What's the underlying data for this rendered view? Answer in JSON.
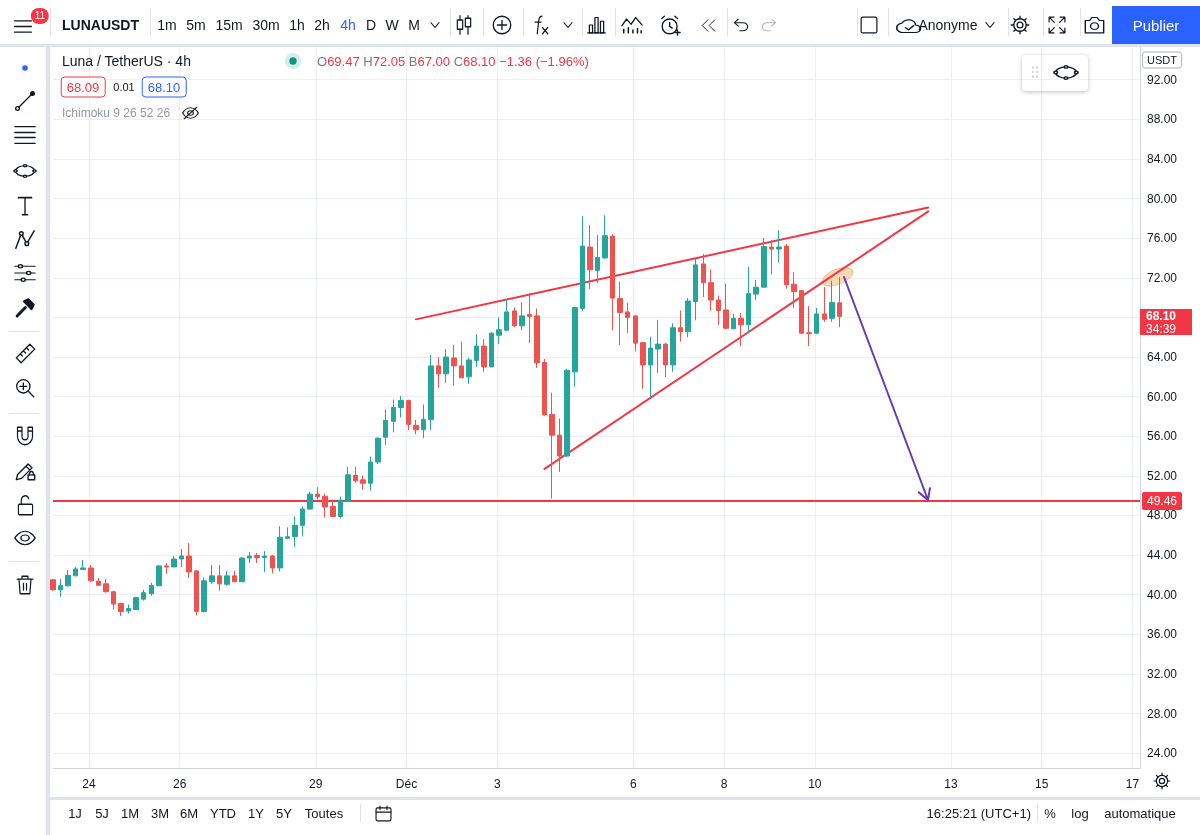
{
  "chart_data": {
    "type": "candlestick",
    "title": "Luna / TetherUS · 4h",
    "subtitle": "O69.47 H72.05 B67.00 C68.10 −1.36 (−1.96%)",
    "x": [
      "--11-23T05:00",
      "--11-23T09:00",
      "--11-23T13:00",
      "--11-23T17:00",
      "--11-23T21:00",
      "--11-24T01:00",
      "--11-24T05:00",
      "--11-24T09:00",
      "--11-24T13:00",
      "--11-24T17:00",
      "--11-24T21:00",
      "--11-25T01:00",
      "--11-25T05:00",
      "--11-25T09:00",
      "--11-25T13:00",
      "--11-25T17:00",
      "--11-25T21:00",
      "--11-26T01:00",
      "--11-26T05:00",
      "--11-26T09:00",
      "--11-26T13:00",
      "--11-26T17:00",
      "--11-26T21:00",
      "--11-27T01:00",
      "--11-27T05:00",
      "--11-27T09:00",
      "--11-27T13:00",
      "--11-27T17:00",
      "--11-27T21:00",
      "--11-28T01:00",
      "--11-28T05:00",
      "--11-28T09:00",
      "--11-28T13:00",
      "--11-28T17:00",
      "--11-28T21:00",
      "--11-29T01:00",
      "--11-29T05:00",
      "--11-29T09:00",
      "--11-29T13:00",
      "--11-29T17:00",
      "--11-29T21:00",
      "--11-30T01:00",
      "--11-30T05:00",
      "--11-30T09:00",
      "--11-30T13:00",
      "--11-30T17:00",
      "--11-30T21:00",
      "--12-01T01:00",
      "--12-01T05:00",
      "--12-01T09:00",
      "--12-01T13:00",
      "--12-01T17:00",
      "--12-01T21:00",
      "--12-02T01:00",
      "--12-02T05:00",
      "--12-02T09:00",
      "--12-02T13:00",
      "--12-02T17:00",
      "--12-02T21:00",
      "--12-03T01:00",
      "--12-03T05:00",
      "--12-03T09:00",
      "--12-03T13:00",
      "--12-03T17:00",
      "--12-03T21:00",
      "--12-04T01:00",
      "--12-04T05:00",
      "--12-04T09:00",
      "--12-04T13:00",
      "--12-04T17:00",
      "--12-04T21:00",
      "--12-05T01:00",
      "--12-05T05:00",
      "--12-05T09:00",
      "--12-05T13:00",
      "--12-05T17:00",
      "--12-05T21:00",
      "--12-06T01:00",
      "--12-06T05:00",
      "--12-06T09:00",
      "--12-06T13:00",
      "--12-06T17:00",
      "--12-06T21:00",
      "--12-07T01:00",
      "--12-07T05:00",
      "--12-07T09:00",
      "--12-07T13:00",
      "--12-07T17:00",
      "--12-07T21:00",
      "--12-08T01:00",
      "--12-08T05:00",
      "--12-08T09:00",
      "--12-08T13:00",
      "--12-08T17:00",
      "--12-08T21:00",
      "--12-09T01:00",
      "--12-09T05:00",
      "--12-09T09:00",
      "--12-09T13:00",
      "--12-09T17:00",
      "--12-09T21:00",
      "--12-10T01:00",
      "--12-10T05:00",
      "--12-10T09:00",
      "--12-10T13:00"
    ],
    "ohlc": [
      [
        41.5,
        41.6,
        40.4,
        40.5
      ],
      [
        40.5,
        41.6,
        39.8,
        40.9
      ],
      [
        40.9,
        42.5,
        40.8,
        41.95
      ],
      [
        41.9,
        42.8,
        41.9,
        42.6
      ],
      [
        42.55,
        43.5,
        42.5,
        42.7
      ],
      [
        42.7,
        43.0,
        41.3,
        41.4
      ],
      [
        41.35,
        41.7,
        40.9,
        40.95
      ],
      [
        41.1,
        41.6,
        40.2,
        40.3
      ],
      [
        40.3,
        40.4,
        38.5,
        39.05
      ],
      [
        39.1,
        39.2,
        37.85,
        38.3
      ],
      [
        38.35,
        39.0,
        38.1,
        38.6
      ],
      [
        38.5,
        39.8,
        38.5,
        39.7
      ],
      [
        39.55,
        40.5,
        39.4,
        40.2
      ],
      [
        40.1,
        41.2,
        39.9,
        40.95
      ],
      [
        40.9,
        43.0,
        40.9,
        42.9
      ],
      [
        42.9,
        43.2,
        42.1,
        42.8
      ],
      [
        42.8,
        43.9,
        42.8,
        43.6
      ],
      [
        43.6,
        44.6,
        42.8,
        43.9
      ],
      [
        43.9,
        45.2,
        41.7,
        42.3
      ],
      [
        42.4,
        42.5,
        37.9,
        38.3
      ],
      [
        38.3,
        41.75,
        38.2,
        41.4
      ],
      [
        41.3,
        43.0,
        41.1,
        41.9
      ],
      [
        41.9,
        43.0,
        40.4,
        41.1
      ],
      [
        41.05,
        42.4,
        40.9,
        41.9
      ],
      [
        41.9,
        42.4,
        41.3,
        41.3
      ],
      [
        41.3,
        43.8,
        41.3,
        43.7
      ],
      [
        43.7,
        44.3,
        43.2,
        43.9
      ],
      [
        43.95,
        44.2,
        43.2,
        43.75
      ],
      [
        43.75,
        44.4,
        42.3,
        43.9
      ],
      [
        43.9,
        44.0,
        42.15,
        42.7
      ],
      [
        42.7,
        46.9,
        42.35,
        45.8
      ],
      [
        45.7,
        46.8,
        45.6,
        45.85
      ],
      [
        45.85,
        47.9,
        44.8,
        47.0
      ],
      [
        47.0,
        48.9,
        45.9,
        48.65
      ],
      [
        48.65,
        50.4,
        48.6,
        50.15
      ],
      [
        50.15,
        50.85,
        49.6,
        49.9
      ],
      [
        49.95,
        50.2,
        47.8,
        48.85
      ],
      [
        48.9,
        49.6,
        47.85,
        47.9
      ],
      [
        47.9,
        49.9,
        47.7,
        49.55
      ],
      [
        49.45,
        52.9,
        49.4,
        52.1
      ],
      [
        52.05,
        52.9,
        51.3,
        51.5
      ],
      [
        51.6,
        52.05,
        50.6,
        51.25
      ],
      [
        51.25,
        53.95,
        50.5,
        53.4
      ],
      [
        53.4,
        55.9,
        53.2,
        55.8
      ],
      [
        55.9,
        58.7,
        55.1,
        57.6
      ],
      [
        57.5,
        59.7,
        56.4,
        58.9
      ],
      [
        58.9,
        60.05,
        57.9,
        59.6
      ],
      [
        59.6,
        59.7,
        56.6,
        57.2
      ],
      [
        57.1,
        57.65,
        56.2,
        56.65
      ],
      [
        56.65,
        59.2,
        55.8,
        57.7
      ],
      [
        57.7,
        64.2,
        56.6,
        63.1
      ],
      [
        63.1,
        64.0,
        60.9,
        62.3
      ],
      [
        62.3,
        64.8,
        61.4,
        64.0
      ],
      [
        63.9,
        65.2,
        61.1,
        63.1
      ],
      [
        63.1,
        65.55,
        61.9,
        61.9
      ],
      [
        62.0,
        63.9,
        61.3,
        63.7
      ],
      [
        63.65,
        66.3,
        63.0,
        65.1
      ],
      [
        65.1,
        65.8,
        62.5,
        63.0
      ],
      [
        63.0,
        66.5,
        63.0,
        66.4
      ],
      [
        66.2,
        68.0,
        65.3,
        66.75
      ],
      [
        66.7,
        69.8,
        66.6,
        68.55
      ],
      [
        68.65,
        69.0,
        67.0,
        67.15
      ],
      [
        67.15,
        69.5,
        66.7,
        68.15
      ],
      [
        68.3,
        70.45,
        65.4,
        68.1
      ],
      [
        68.15,
        68.9,
        62.9,
        63.4
      ],
      [
        63.45,
        63.8,
        58.1,
        58.15
      ],
      [
        58.2,
        60.4,
        49.7,
        56.1
      ],
      [
        56.1,
        57.8,
        52.4,
        54.0
      ],
      [
        54.0,
        62.8,
        53.9,
        62.65
      ],
      [
        62.5,
        69.1,
        61.0,
        69.0
      ],
      [
        68.9,
        78.2,
        68.6,
        75.2
      ],
      [
        75.1,
        77.35,
        70.85,
        72.8
      ],
      [
        72.75,
        76.35,
        71.5,
        74.05
      ],
      [
        74.0,
        78.3,
        73.9,
        76.25
      ],
      [
        76.2,
        76.4,
        66.7,
        69.95
      ],
      [
        69.9,
        71.6,
        65.2,
        68.5
      ],
      [
        68.55,
        69.45,
        66.4,
        68.0
      ],
      [
        68.15,
        68.2,
        64.55,
        65.4
      ],
      [
        65.45,
        65.5,
        60.8,
        63.2
      ],
      [
        63.2,
        66.05,
        59.85,
        64.9
      ],
      [
        64.8,
        67.75,
        62.4,
        65.3
      ],
      [
        65.3,
        65.4,
        61.95,
        63.2
      ],
      [
        63.2,
        67.4,
        62.5,
        66.95
      ],
      [
        66.95,
        68.7,
        65.55,
        66.55
      ],
      [
        66.55,
        69.95,
        66.0,
        69.65
      ],
      [
        69.6,
        74.0,
        67.7,
        73.3
      ],
      [
        73.4,
        74.4,
        70.05,
        71.5
      ],
      [
        71.5,
        72.85,
        68.7,
        69.75
      ],
      [
        69.75,
        70.2,
        67.25,
        68.7
      ],
      [
        68.75,
        71.4,
        66.8,
        66.9
      ],
      [
        66.85,
        68.35,
        66.8,
        67.9
      ],
      [
        67.9,
        68.45,
        65.1,
        67.25
      ],
      [
        67.25,
        73.1,
        66.4,
        70.4
      ],
      [
        70.35,
        71.8,
        69.75,
        71.05
      ],
      [
        71.05,
        76.0,
        71.0,
        75.15
      ],
      [
        75.1,
        75.8,
        72.35,
        74.9
      ],
      [
        74.9,
        76.8,
        73.55,
        75.1
      ],
      [
        75.2,
        75.4,
        70.9,
        71.3
      ],
      [
        71.35,
        72.55,
        68.95,
        70.6
      ],
      [
        70.7,
        70.75,
        66.3,
        66.4
      ],
      [
        66.45,
        69.15,
        65.1,
        66.35
      ],
      [
        66.4,
        68.95,
        66.3,
        68.35
      ],
      [
        68.35,
        71.05,
        67.55,
        67.8
      ],
      [
        67.9,
        71.7,
        67.55,
        69.5
      ],
      [
        69.47,
        72.05,
        67.0,
        68.1
      ]
    ],
    "colors": [
      "#ef5350",
      "#26a69a",
      "#26a69a",
      "#26a69a",
      "#26a69a",
      "#ef5350",
      "#ef5350",
      "#ef5350",
      "#ef5350",
      "#ef5350",
      "#26a69a",
      "#26a69a",
      "#26a69a",
      "#26a69a",
      "#26a69a",
      "#ef5350",
      "#26a69a",
      "#26a69a",
      "#ef5350",
      "#ef5350",
      "#26a69a",
      "#26a69a",
      "#ef5350",
      "#26a69a",
      "#ef5350",
      "#26a69a",
      "#26a69a",
      "#ef5350",
      "#26a69a",
      "#ef5350",
      "#26a69a",
      "#26a69a",
      "#26a69a",
      "#26a69a",
      "#26a69a",
      "#ef5350",
      "#ef5350",
      "#ef5350",
      "#26a69a",
      "#26a69a",
      "#ef5350",
      "#ef5350",
      "#26a69a",
      "#26a69a",
      "#26a69a",
      "#26a69a",
      "#26a69a",
      "#ef5350",
      "#ef5350",
      "#26a69a",
      "#26a69a",
      "#ef5350",
      "#26a69a",
      "#ef5350",
      "#ef5350",
      "#26a69a",
      "#26a69a",
      "#ef5350",
      "#26a69a",
      "#26a69a",
      "#26a69a",
      "#ef5350",
      "#26a69a",
      "#ef5350",
      "#ef5350",
      "#ef5350",
      "#ef5350",
      "#ef5350",
      "#26a69a",
      "#26a69a",
      "#26a69a",
      "#ef5350",
      "#26a69a",
      "#26a69a",
      "#ef5350",
      "#ef5350",
      "#ef5350",
      "#ef5350",
      "#ef5350",
      "#26a69a",
      "#26a69a",
      "#ef5350",
      "#26a69a",
      "#ef5350",
      "#26a69a",
      "#26a69a",
      "#ef5350",
      "#ef5350",
      "#ef5350",
      "#ef5350",
      "#26a69a",
      "#ef5350",
      "#26a69a",
      "#26a69a",
      "#26a69a",
      "#ef5350",
      "#26a69a",
      "#ef5350",
      "#ef5350",
      "#ef5350",
      "#ef5350",
      "#26a69a",
      "#ef5350",
      "#26a69a",
      "#ef5350"
    ],
    "xlim": [
      "--11-23T05:00",
      "--12-17T04:00"
    ],
    "xticks": [
      {
        "value": "--11-24",
        "label": "24"
      },
      {
        "value": "--11-26",
        "label": "26"
      },
      {
        "value": "--11-29",
        "label": "29"
      },
      {
        "value": "--12-01",
        "label": "Déc"
      },
      {
        "value": "--12-03",
        "label": "3"
      },
      {
        "value": "--12-06",
        "label": "6"
      },
      {
        "value": "--12-08",
        "label": "8"
      },
      {
        "value": "--12-10",
        "label": "10"
      },
      {
        "value": "--12-13",
        "label": "13"
      },
      {
        "value": "--12-15",
        "label": "15"
      },
      {
        "value": "--12-17",
        "label": "17"
      }
    ],
    "ylim": [
      22.5,
      95.3
    ],
    "yticks": [
      {
        "value": 24,
        "label": "24.00"
      },
      {
        "value": 28,
        "label": "28.00"
      },
      {
        "value": 32,
        "label": "32.00"
      },
      {
        "value": 36,
        "label": "36.00"
      },
      {
        "value": 40,
        "label": "40.00"
      },
      {
        "value": 44,
        "label": "44.00"
      },
      {
        "value": 48,
        "label": "48.00"
      },
      {
        "value": 52,
        "label": "52.00"
      },
      {
        "value": 56,
        "label": "56.00"
      },
      {
        "value": 60,
        "label": "60.00"
      },
      {
        "value": 64,
        "label": "64.00"
      },
      {
        "value": 68,
        "label": null
      },
      {
        "value": 72,
        "label": "72.00"
      },
      {
        "value": 76,
        "label": "76.00"
      },
      {
        "value": 80,
        "label": "80.00"
      },
      {
        "value": 84,
        "label": "84.00"
      },
      {
        "value": 88,
        "label": "88.00"
      },
      {
        "value": 92,
        "label": "92.00"
      }
    ],
    "grid": true,
    "series": [
      {
        "type": "line",
        "color": "#f23645",
        "x": [
          "--12-01T05:00",
          "--12-12T12:00"
        ],
        "values": [
          67.8,
          79.1
        ]
      },
      {
        "type": "line",
        "color": "#f23645",
        "x": [
          "--12-04T01:00",
          "--12-12T12:00"
        ],
        "values": [
          52.7,
          78.7
        ]
      },
      {
        "type": "scatter",
        "color": "#f9c48e",
        "x": [
          "--12-10T12:00"
        ],
        "values": [
          72.1
        ],
        "marker": "circle"
      }
    ],
    "ref_lines": [
      {
        "axis": "y",
        "value": 49.46,
        "label": "49.46",
        "color": "#f23645"
      }
    ],
    "annotations": [
      "11",
      "LUNAUSDT",
      "1m",
      "5m",
      "15m",
      "30m",
      "1h",
      "2h",
      "4h",
      "D",
      "W",
      "M",
      "Anonyme",
      "Publier",
      "68.09",
      "0.01",
      "68.10",
      "Ichimoku 9 26 52 26",
      "USDT",
      "68.10",
      "34:39",
      "1J",
      "5J",
      "1M",
      "3M",
      "6M",
      "YTD",
      "1Y",
      "5Y",
      "Toutes",
      "16:25:21 (UTC+1)",
      "%",
      "log",
      "automatique"
    ]
  }
}
